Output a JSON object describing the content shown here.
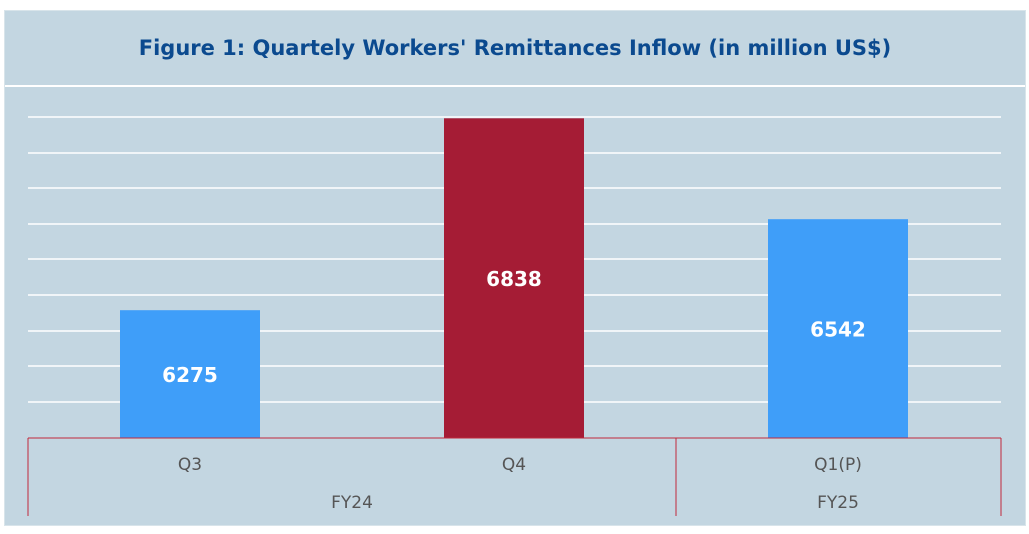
{
  "chart_data": {
    "type": "bar",
    "title": "Figure 1: Quartely Workers' Remittances Inflow (in million US$)",
    "categories": [
      "Q3",
      "Q4",
      "Q1(P)"
    ],
    "groups": [
      {
        "label": "FY24",
        "categories": [
          "Q3",
          "Q4"
        ]
      },
      {
        "label": "FY25",
        "categories": [
          "Q1(P)"
        ]
      }
    ],
    "values": [
      6275,
      6838,
      6542
    ],
    "data_labels": [
      "6275",
      "6838",
      "6542"
    ],
    "bar_colors": [
      "#3f9ef9",
      "#a51c35",
      "#3f9ef9"
    ],
    "ylim": [
      5900,
      6880
    ],
    "grid": true,
    "xlabel": "",
    "ylabel": ""
  },
  "colors": {
    "background": "#c3d6e1",
    "title": "#0b4a8f",
    "gridline": "#ffffff",
    "axis_line": "#c0283a",
    "tick_label": "#555555",
    "data_label": "#ffffff"
  }
}
